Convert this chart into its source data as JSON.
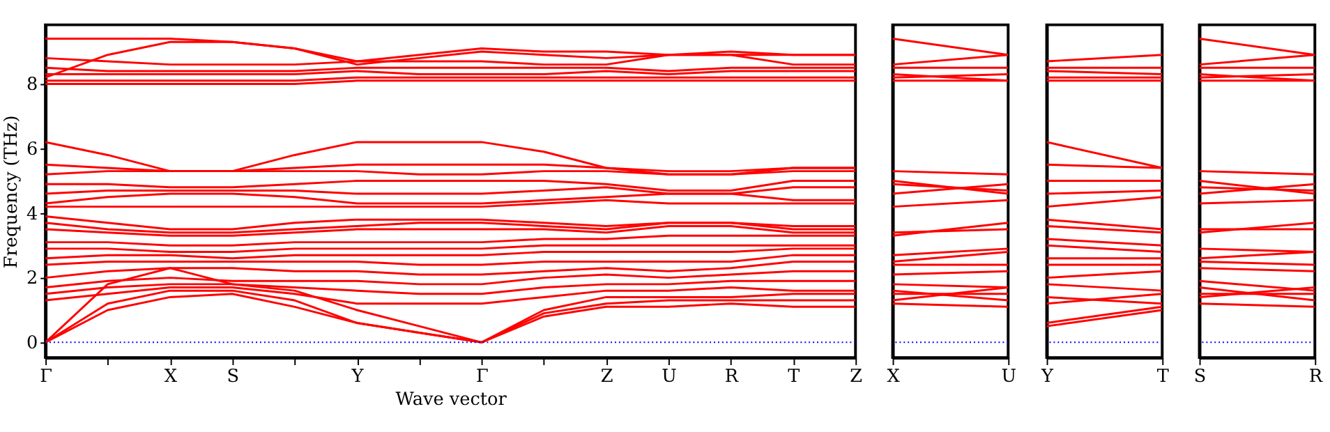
{
  "chart_data": [
    {
      "type": "line",
      "xlabel": "Wave vector",
      "ylabel": "Frequency (THz)",
      "color": "#ff0000",
      "grid": false,
      "categories": [
        "Γ",
        null,
        "X",
        "S",
        null,
        "Y",
        null,
        "Γ",
        null,
        "Z",
        "U",
        "R",
        "T",
        "Z"
      ],
      "ylim": [
        -0.47,
        9.83
      ],
      "yticks": [
        0,
        2,
        4,
        6,
        8
      ],
      "ref_lines": [
        {
          "axis": "y",
          "value": 0,
          "color": "#0000ff",
          "line_style": "dotted"
        }
      ],
      "series": [
        {
          "values": [
            0,
            1.0,
            1.4,
            1.5,
            1.1,
            0.6,
            0.3,
            0,
            0.8,
            1.1,
            1.1,
            1.2,
            1.1,
            1.1
          ]
        },
        {
          "values": [
            0,
            1.2,
            1.6,
            1.6,
            1.3,
            0.6,
            0.3,
            0,
            0.9,
            1.2,
            1.3,
            1.3,
            1.3,
            1.3
          ]
        },
        {
          "values": [
            0,
            1.8,
            2.3,
            1.8,
            1.6,
            1.0,
            0.5,
            0,
            1.0,
            1.4,
            1.4,
            1.4,
            1.5,
            1.5
          ]
        },
        {
          "values": [
            1.3,
            1.5,
            1.7,
            1.7,
            1.5,
            1.2,
            1.2,
            1.2,
            1.4,
            1.6,
            1.6,
            1.7,
            1.6,
            1.6
          ]
        },
        {
          "values": [
            1.5,
            1.7,
            1.8,
            1.8,
            1.7,
            1.6,
            1.5,
            1.5,
            1.7,
            1.8,
            1.8,
            1.9,
            1.9,
            1.9
          ]
        },
        {
          "values": [
            1.7,
            1.9,
            2.0,
            1.9,
            1.9,
            1.9,
            1.8,
            1.8,
            2.0,
            2.1,
            2.0,
            2.1,
            2.2,
            2.2
          ]
        },
        {
          "values": [
            2.0,
            2.2,
            2.3,
            2.3,
            2.2,
            2.2,
            2.1,
            2.1,
            2.2,
            2.3,
            2.2,
            2.3,
            2.5,
            2.5
          ]
        },
        {
          "values": [
            2.4,
            2.5,
            2.5,
            2.5,
            2.5,
            2.5,
            2.4,
            2.4,
            2.5,
            2.5,
            2.5,
            2.5,
            2.7,
            2.7
          ]
        },
        {
          "values": [
            2.6,
            2.7,
            2.7,
            2.6,
            2.7,
            2.7,
            2.7,
            2.7,
            2.8,
            2.8,
            2.8,
            2.8,
            2.9,
            2.9
          ]
        },
        {
          "values": [
            2.9,
            2.9,
            2.8,
            2.8,
            2.9,
            2.9,
            2.9,
            2.9,
            3.0,
            3.0,
            3.0,
            3.0,
            3.0,
            3.0
          ]
        },
        {
          "values": [
            3.1,
            3.1,
            3.0,
            3.0,
            3.1,
            3.1,
            3.1,
            3.1,
            3.2,
            3.2,
            3.3,
            3.3,
            3.3,
            3.3
          ]
        },
        {
          "values": [
            3.5,
            3.4,
            3.3,
            3.3,
            3.4,
            3.5,
            3.5,
            3.5,
            3.5,
            3.4,
            3.6,
            3.6,
            3.4,
            3.4
          ]
        },
        {
          "values": [
            3.7,
            3.5,
            3.4,
            3.4,
            3.5,
            3.6,
            3.7,
            3.7,
            3.6,
            3.5,
            3.7,
            3.7,
            3.5,
            3.5
          ]
        },
        {
          "values": [
            3.9,
            3.7,
            3.5,
            3.5,
            3.7,
            3.8,
            3.8,
            3.8,
            3.7,
            3.6,
            3.7,
            3.7,
            3.6,
            3.6
          ]
        },
        {
          "values": [
            4.2,
            4.2,
            4.2,
            4.2,
            4.2,
            4.2,
            4.2,
            4.2,
            4.3,
            4.4,
            4.3,
            4.3,
            4.3,
            4.3
          ]
        },
        {
          "values": [
            4.3,
            4.5,
            4.6,
            4.6,
            4.5,
            4.3,
            4.3,
            4.3,
            4.4,
            4.5,
            4.6,
            4.6,
            4.4,
            4.4
          ]
        },
        {
          "values": [
            4.6,
            4.7,
            4.7,
            4.7,
            4.7,
            4.6,
            4.6,
            4.6,
            4.7,
            4.8,
            4.6,
            4.6,
            4.8,
            4.8
          ]
        },
        {
          "values": [
            4.9,
            4.9,
            4.8,
            4.8,
            4.9,
            5.0,
            5.0,
            5.0,
            5.0,
            4.9,
            4.7,
            4.7,
            5.0,
            5.0
          ]
        },
        {
          "values": [
            5.2,
            5.3,
            5.3,
            5.3,
            5.3,
            5.3,
            5.2,
            5.2,
            5.3,
            5.3,
            5.2,
            5.2,
            5.3,
            5.3
          ]
        },
        {
          "values": [
            5.5,
            5.4,
            5.3,
            5.3,
            5.4,
            5.5,
            5.5,
            5.5,
            5.5,
            5.4,
            5.2,
            5.2,
            5.4,
            5.4
          ]
        },
        {
          "values": [
            6.2,
            5.8,
            5.3,
            5.3,
            5.8,
            6.2,
            6.2,
            6.2,
            5.9,
            5.4,
            5.3,
            5.3,
            5.4,
            5.4
          ]
        },
        {
          "values": [
            8.0,
            8.0,
            8.0,
            8.0,
            8.0,
            8.1,
            8.1,
            8.1,
            8.1,
            8.1,
            8.1,
            8.1,
            8.1,
            8.1
          ]
        },
        {
          "values": [
            8.1,
            8.1,
            8.1,
            8.1,
            8.1,
            8.2,
            8.2,
            8.2,
            8.2,
            8.2,
            8.2,
            8.2,
            8.2,
            8.2
          ]
        },
        {
          "values": [
            8.3,
            8.3,
            8.3,
            8.3,
            8.3,
            8.4,
            8.3,
            8.3,
            8.3,
            8.4,
            8.3,
            8.4,
            8.4,
            8.4
          ]
        },
        {
          "values": [
            8.5,
            8.4,
            8.4,
            8.4,
            8.4,
            8.5,
            8.5,
            8.5,
            8.5,
            8.5,
            8.4,
            8.5,
            8.5,
            8.5
          ]
        },
        {
          "values": [
            8.8,
            8.7,
            8.6,
            8.6,
            8.6,
            8.7,
            8.7,
            8.7,
            8.6,
            8.6,
            8.9,
            8.9,
            8.6,
            8.6
          ]
        },
        {
          "values": [
            8.2,
            8.9,
            9.3,
            9.3,
            9.1,
            8.6,
            8.8,
            9.0,
            8.9,
            8.8,
            8.9,
            9.0,
            8.9,
            8.9
          ]
        },
        {
          "values": [
            9.4,
            9.4,
            9.4,
            9.3,
            9.1,
            8.7,
            8.9,
            9.1,
            9.0,
            9.0,
            8.9,
            8.9,
            8.9,
            8.9
          ]
        }
      ]
    },
    {
      "type": "line",
      "color": "#ff0000",
      "tick_labels": "x",
      "categories": [
        "X",
        "U"
      ],
      "ylim": [
        -0.47,
        9.83
      ],
      "ref_lines": [
        {
          "axis": "y",
          "value": 0,
          "color": "#0000ff",
          "line_style": "dotted"
        }
      ],
      "series": [
        {
          "values": [
            9.4,
            8.9
          ]
        },
        {
          "values": [
            8.6,
            8.9
          ]
        },
        {
          "values": [
            8.5,
            8.5
          ]
        },
        {
          "values": [
            8.3,
            8.1
          ]
        },
        {
          "values": [
            8.2,
            8.3
          ]
        },
        {
          "values": [
            8.1,
            8.1
          ]
        },
        {
          "values": [
            5.3,
            5.2
          ]
        },
        {
          "values": [
            5.0,
            4.6
          ]
        },
        {
          "values": [
            4.9,
            4.7
          ]
        },
        {
          "values": [
            4.6,
            4.9
          ]
        },
        {
          "values": [
            4.2,
            4.4
          ]
        },
        {
          "values": [
            3.3,
            3.7
          ]
        },
        {
          "values": [
            3.4,
            3.5
          ]
        },
        {
          "values": [
            2.7,
            2.9
          ]
        },
        {
          "values": [
            2.5,
            2.8
          ]
        },
        {
          "values": [
            2.4,
            2.4
          ]
        },
        {
          "values": [
            2.1,
            2.2
          ]
        },
        {
          "values": [
            1.8,
            1.7
          ]
        },
        {
          "values": [
            1.6,
            1.3
          ]
        },
        {
          "values": [
            1.5,
            1.5
          ]
        },
        {
          "values": [
            1.3,
            1.7
          ]
        },
        {
          "values": [
            1.2,
            1.1
          ]
        }
      ]
    },
    {
      "type": "line",
      "color": "#ff0000",
      "tick_labels": "x",
      "categories": [
        "Y",
        "T"
      ],
      "ylim": [
        -0.47,
        9.83
      ],
      "ref_lines": [
        {
          "axis": "y",
          "value": 0,
          "color": "#0000ff",
          "line_style": "dotted"
        }
      ],
      "series": [
        {
          "values": [
            8.7,
            8.9
          ]
        },
        {
          "values": [
            8.5,
            8.5
          ]
        },
        {
          "values": [
            8.4,
            8.3
          ]
        },
        {
          "values": [
            8.2,
            8.2
          ]
        },
        {
          "values": [
            8.1,
            8.1
          ]
        },
        {
          "values": [
            6.2,
            5.4
          ]
        },
        {
          "values": [
            5.5,
            5.4
          ]
        },
        {
          "values": [
            5.0,
            5.0
          ]
        },
        {
          "values": [
            4.6,
            4.7
          ]
        },
        {
          "values": [
            4.2,
            4.5
          ]
        },
        {
          "values": [
            3.8,
            3.5
          ]
        },
        {
          "values": [
            3.6,
            3.4
          ]
        },
        {
          "values": [
            3.2,
            3.0
          ]
        },
        {
          "values": [
            3.0,
            2.8
          ]
        },
        {
          "values": [
            2.6,
            2.6
          ]
        },
        {
          "values": [
            2.4,
            2.4
          ]
        },
        {
          "values": [
            2.0,
            2.2
          ]
        },
        {
          "values": [
            1.8,
            1.6
          ]
        },
        {
          "values": [
            1.4,
            1.2
          ]
        },
        {
          "values": [
            1.2,
            1.5
          ]
        },
        {
          "values": [
            0.6,
            1.1
          ]
        },
        {
          "values": [
            0.5,
            1.0
          ]
        }
      ]
    },
    {
      "type": "line",
      "color": "#ff0000",
      "tick_labels": "x",
      "categories": [
        "S",
        "R"
      ],
      "ylim": [
        -0.47,
        9.83
      ],
      "ref_lines": [
        {
          "axis": "y",
          "value": 0,
          "color": "#0000ff",
          "line_style": "dotted"
        }
      ],
      "series": [
        {
          "values": [
            9.4,
            8.9
          ]
        },
        {
          "values": [
            8.6,
            8.9
          ]
        },
        {
          "values": [
            8.5,
            8.5
          ]
        },
        {
          "values": [
            8.3,
            8.1
          ]
        },
        {
          "values": [
            8.2,
            8.3
          ]
        },
        {
          "values": [
            8.1,
            8.1
          ]
        },
        {
          "values": [
            5.3,
            5.2
          ]
        },
        {
          "values": [
            5.0,
            4.6
          ]
        },
        {
          "values": [
            4.8,
            4.7
          ]
        },
        {
          "values": [
            4.6,
            4.9
          ]
        },
        {
          "values": [
            4.3,
            4.4
          ]
        },
        {
          "values": [
            3.4,
            3.7
          ]
        },
        {
          "values": [
            3.5,
            3.5
          ]
        },
        {
          "values": [
            2.9,
            2.8
          ]
        },
        {
          "values": [
            2.6,
            2.8
          ]
        },
        {
          "values": [
            2.5,
            2.4
          ]
        },
        {
          "values": [
            2.3,
            2.2
          ]
        },
        {
          "values": [
            1.9,
            1.6
          ]
        },
        {
          "values": [
            1.7,
            1.3
          ]
        },
        {
          "values": [
            1.5,
            1.5
          ]
        },
        {
          "values": [
            1.4,
            1.7
          ]
        },
        {
          "values": [
            1.2,
            1.1
          ]
        }
      ]
    }
  ]
}
